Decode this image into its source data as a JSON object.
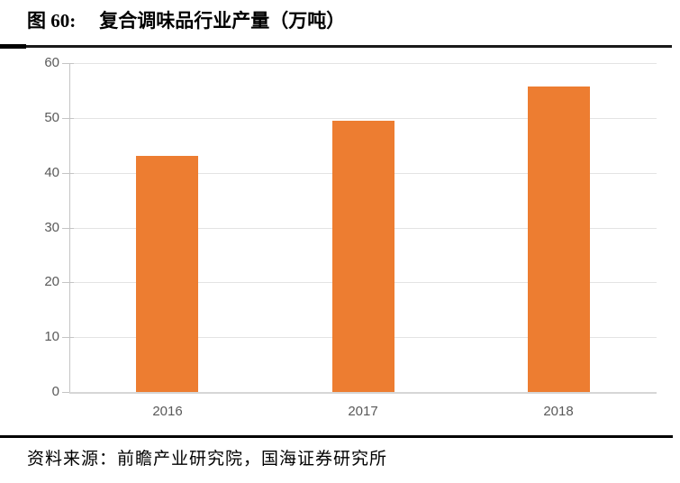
{
  "header": {
    "figure_label": "图 60:",
    "title": "复合调味品行业产量（万吨）"
  },
  "chart_data": {
    "type": "bar",
    "title": "复合调味品行业产量（万吨）",
    "categories": [
      "2016",
      "2017",
      "2018"
    ],
    "values": [
      43,
      49.5,
      55.7
    ],
    "xlabel": "",
    "ylabel": "",
    "ylim": [
      0,
      60
    ],
    "yticks": [
      0,
      10,
      20,
      30,
      40,
      50,
      60
    ],
    "grid": true,
    "legend": false,
    "bar_color": "#ED7D31"
  },
  "footer": {
    "source": "资料来源：前瞻产业研究院，国海证券研究所"
  },
  "colors": {
    "bar": "#ED7D31",
    "axis_label": "#595959",
    "gridline": "#E3E3E3",
    "axis_line": "#C4C4C4",
    "divider": "#000000"
  }
}
